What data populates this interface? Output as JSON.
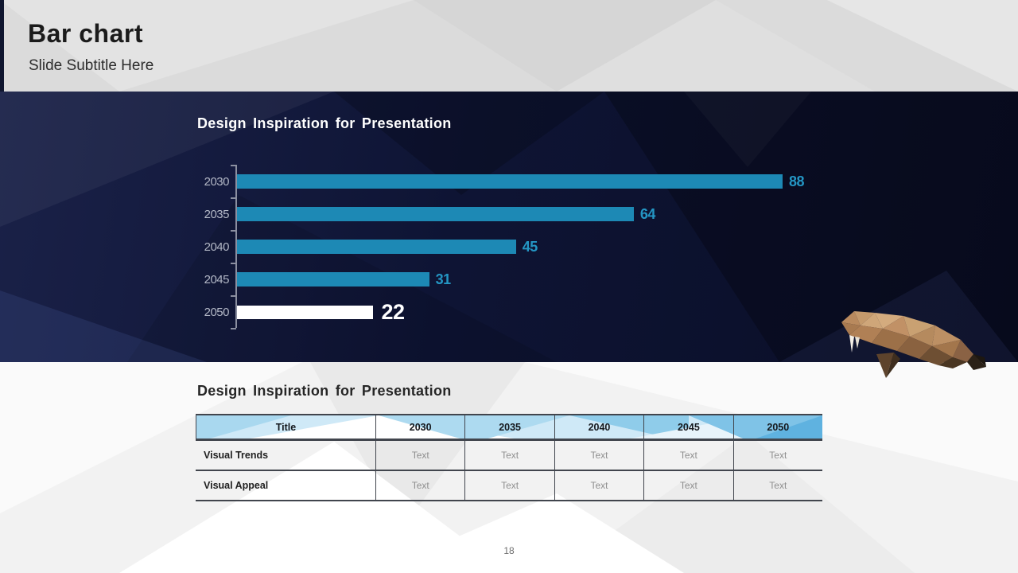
{
  "slide": {
    "title": "Bar chart",
    "subtitle": "Slide Subtitle Here",
    "page_number": "18"
  },
  "dark_panel": {
    "title": "Design Inspiration for Presentation"
  },
  "chart_data": {
    "type": "bar",
    "orientation": "horizontal",
    "title": "Design Inspiration for Presentation",
    "categories": [
      "2030",
      "2035",
      "2040",
      "2045",
      "2050"
    ],
    "values": [
      88,
      64,
      45,
      31,
      22
    ],
    "highlight_index": 4,
    "highlight_category": "2050",
    "bar_color": "#1d89b5",
    "highlight_bar_color": "#ffffff",
    "value_label_color": "#2496c4",
    "highlight_value_label_color": "#ffffff",
    "category_label_color": "#b3b8c6",
    "axis_color": "#8b8fa0",
    "background_color": "#0d1231",
    "grid": false,
    "value_labels_shown": true,
    "value_axis_ticks_shown": false
  },
  "table_panel": {
    "title": "Design Inspiration for Presentation",
    "table": {
      "headers": [
        "Title",
        "2030",
        "2035",
        "2040",
        "2045",
        "2050"
      ],
      "rows": [
        {
          "label": "Visual Trends",
          "cells": [
            "Text",
            "Text",
            "Text",
            "Text",
            "Text"
          ]
        },
        {
          "label": "Visual Appeal",
          "cells": [
            "Text",
            "Text",
            "Text",
            "Text",
            "Text"
          ]
        }
      ]
    }
  },
  "decor": {
    "walrus_illustration": "low-poly walrus",
    "accent_navy": "#0d1231",
    "accent_teal": "#1d89b5",
    "table_header_blue": "#9fd2ec",
    "header_background": "#dbdbdb",
    "body_background": "#f2f2f2"
  }
}
